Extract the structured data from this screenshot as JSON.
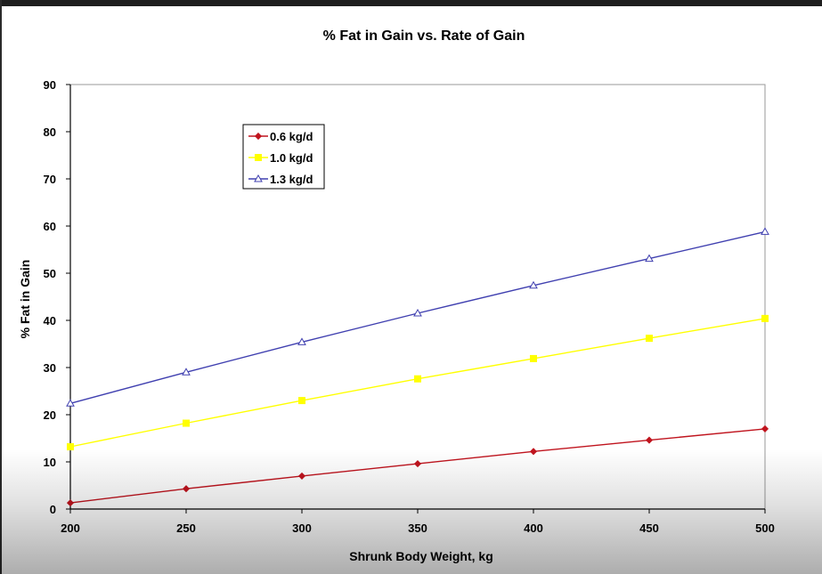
{
  "chart_data": {
    "type": "line",
    "title": "% Fat in Gain vs. Rate of Gain",
    "xlabel": "Shrunk Body Weight, kg",
    "ylabel": "% Fat in Gain",
    "x": [
      200,
      250,
      300,
      350,
      400,
      450,
      500
    ],
    "xlim": [
      200,
      500
    ],
    "ylim": [
      0,
      90
    ],
    "xticks": [
      200,
      250,
      300,
      350,
      400,
      450,
      500
    ],
    "yticks": [
      0,
      10,
      20,
      30,
      40,
      50,
      60,
      70,
      80,
      90
    ],
    "grid": false,
    "legend_position": "top-left",
    "series": [
      {
        "name": "0.6 kg/d",
        "color": "#c0141e",
        "marker": "diamond",
        "values": [
          1.3,
          4.3,
          7.0,
          9.6,
          12.2,
          14.6,
          17.0
        ]
      },
      {
        "name": "1.0 kg/d",
        "color": "#ffff00",
        "marker": "square",
        "values": [
          13.2,
          18.2,
          23.0,
          27.6,
          31.9,
          36.2,
          40.4
        ]
      },
      {
        "name": "1.3 kg/d",
        "color": "#4040b0",
        "marker": "triangle-open",
        "values": [
          22.4,
          29.0,
          35.4,
          41.5,
          47.4,
          53.1,
          58.8
        ]
      }
    ]
  }
}
